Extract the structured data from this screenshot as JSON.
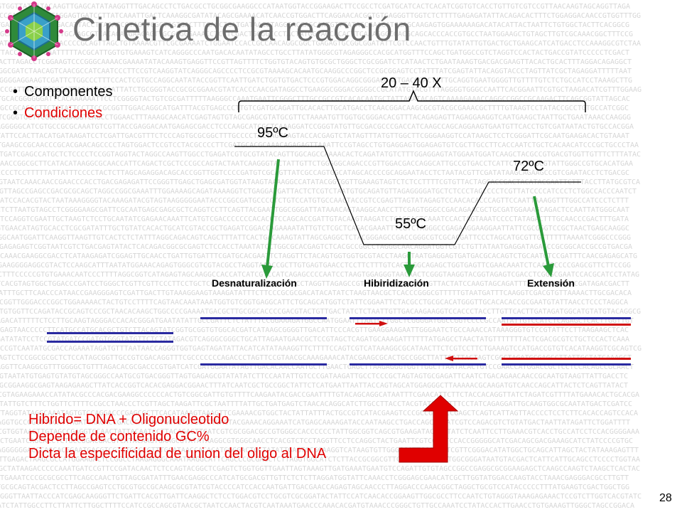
{
  "slide": {
    "title": "Cinetica de la reacción",
    "bullets": [
      {
        "label": "Componentes",
        "color": "#000000"
      },
      {
        "label": "Condiciones",
        "color": "#e00000"
      }
    ],
    "cycles_label": "20 – 40 X",
    "temperatures": {
      "denaturation": "95ºC",
      "annealing": "55ºC",
      "extension": "72ºC"
    },
    "stages": [
      "Desnaturalización",
      "Hibiridización",
      "Extensión"
    ],
    "notes": [
      "Hibrido= DNA + Oligonucleotido",
      "Depende de contenido GC%",
      "Dicta la especificidad de union del oligo al DNA"
    ],
    "page_number": "28"
  },
  "colors": {
    "title": "#6e6e6e",
    "accent_red": "#e00000",
    "strand_blue": "#2a2aa0",
    "primer_red": "#d01010",
    "arrow_green": "#2a9a3a",
    "background_text": "#c8c8c8"
  },
  "icons": {
    "logo": "virus-capsid-icon",
    "big_arrow": "up-arrow-icon"
  }
}
